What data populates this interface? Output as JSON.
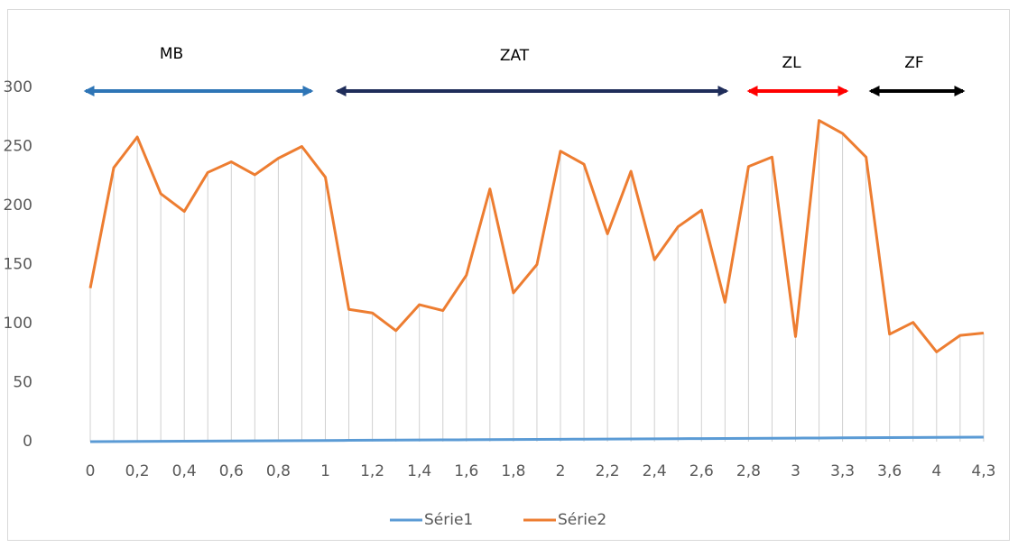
{
  "chart_data": {
    "type": "line",
    "categories": [
      "0",
      null,
      "0,2",
      null,
      "0,4",
      null,
      "0,6",
      null,
      "0,8",
      null,
      "1",
      null,
      "1,2",
      null,
      "1,4",
      null,
      "1,6",
      null,
      "1,8",
      null,
      "2",
      null,
      "2,2",
      null,
      "2,4",
      null,
      "2,6",
      null,
      "2,8",
      null,
      "3",
      null,
      "3,3",
      null,
      "3,6",
      null,
      "4",
      null,
      "4,3"
    ],
    "series": [
      {
        "name": "Série1",
        "color": "#5b9bd5",
        "values": [
          0,
          0.1,
          0.2,
          0.3,
          0.4,
          0.5,
          0.6,
          0.7,
          0.8,
          0.9,
          1,
          1.1,
          1.2,
          1.3,
          1.4,
          1.5,
          1.6,
          1.7,
          1.8,
          1.9,
          2,
          2.1,
          2.2,
          2.3,
          2.4,
          2.5,
          2.6,
          2.7,
          2.8,
          2.9,
          3,
          3.1,
          3.2,
          3.3,
          3.4,
          3.5,
          3.6,
          3.7,
          3.8
        ]
      },
      {
        "name": "Série2",
        "color": "#ed7d31",
        "values": [
          130,
          232,
          258,
          210,
          195,
          228,
          237,
          226,
          240,
          250,
          224,
          112,
          109,
          94,
          116,
          111,
          141,
          214,
          126,
          150,
          246,
          235,
          176,
          229,
          154,
          182,
          196,
          118,
          233,
          241,
          89,
          272,
          261,
          241,
          91,
          101,
          76,
          90,
          92
        ]
      }
    ],
    "drop_lines": true,
    "ylim": [
      0,
      300
    ],
    "yticks": [
      0,
      50,
      100,
      150,
      200,
      250,
      300
    ],
    "annotations": [
      {
        "text": "MB",
        "color": "#2e75b6"
      },
      {
        "text": "ZAT",
        "color": "#1f2d5a"
      },
      {
        "text": "ZL",
        "color": "#ff0000"
      },
      {
        "text": "ZF",
        "color": "#000000"
      }
    ],
    "legend": "bottom"
  }
}
